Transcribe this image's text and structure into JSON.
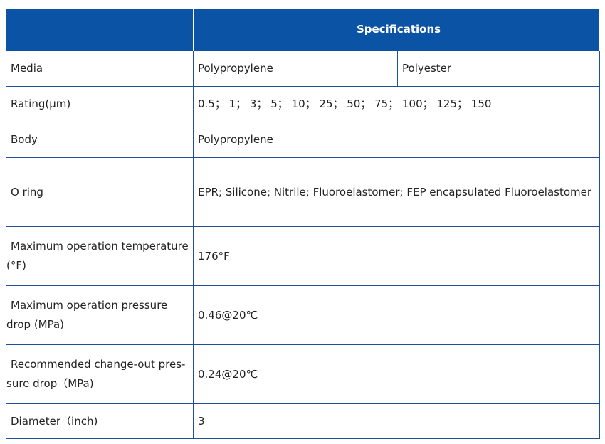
{
  "table": {
    "header": "Specifications",
    "rows": [
      {
        "label": "Media",
        "value": "Polypropylene",
        "value2": "Polyester"
      },
      {
        "label": "Rating(μm)",
        "value": "0.5； 1； 3； 5； 10； 25； 50； 75； 100； 125； 150"
      },
      {
        "label": "Body",
        "value": "Polypropylene"
      },
      {
        "label": "O ring",
        "value": "EPR;  Silicone; Nitrile; Fluoroelastomer; FEP encapsulated Fluoroelastomer"
      },
      {
        "label_line1": "Maximum operation temperature",
        "label_line2": "(°F)",
        "value": "176°F"
      },
      {
        "label_line1": "Maximum operation pressure",
        "label_line2": "drop (MPa)",
        "value": "0.46@20℃"
      },
      {
        "label_line1": "Recommended change-out pres-",
        "label_line2": "sure drop（MPa)",
        "value": "0.24@20℃"
      },
      {
        "label": "Diameter（inch)",
        "value": "3"
      }
    ]
  }
}
